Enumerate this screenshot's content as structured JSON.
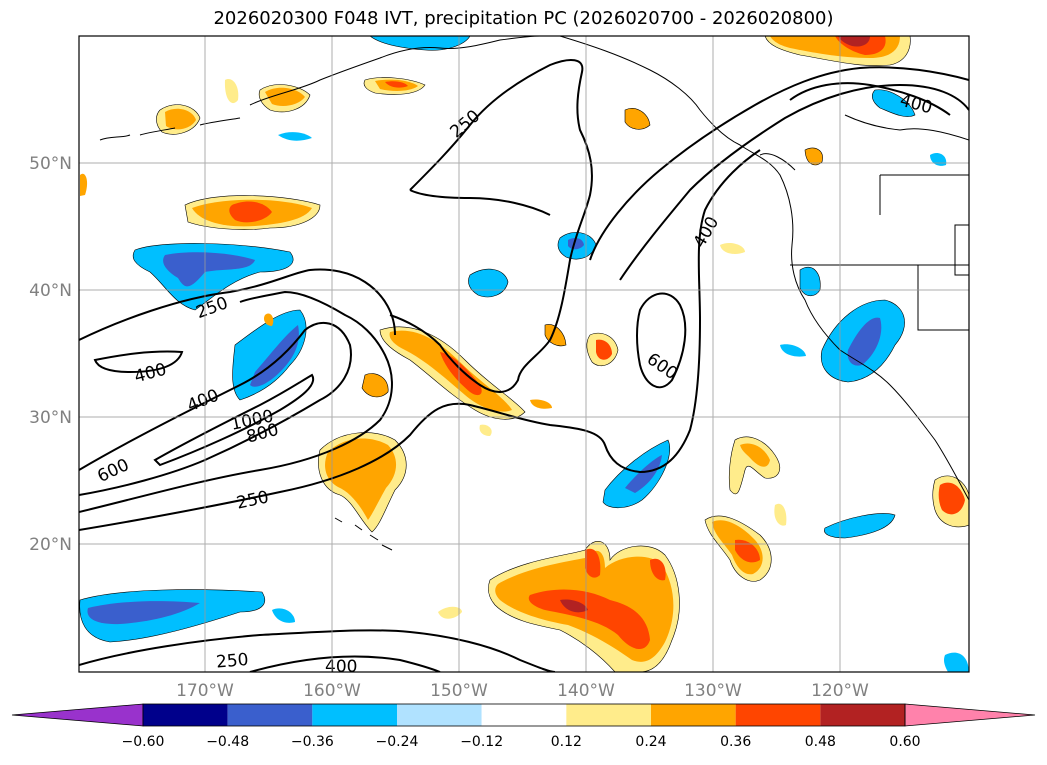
{
  "title": "2026020300 F048 IVT, precipitation PC (2026020700 - 2026020800)",
  "map": {
    "lat_labels": [
      "50°N",
      "40°N",
      "30°N",
      "20°N"
    ],
    "lon_labels": [
      "170°W",
      "160°W",
      "150°W",
      "140°W",
      "130°W",
      "120°W"
    ],
    "ivt_contour_levels": [
      "250",
      "400",
      "600",
      "800",
      "1000"
    ]
  },
  "colorbar": {
    "tick_labels": [
      "−0.60",
      "−0.48",
      "−0.36",
      "−0.24",
      "−0.12",
      "0.12",
      "0.24",
      "0.36",
      "0.48",
      "0.60"
    ],
    "colors": [
      "#9932CC",
      "#00008B",
      "#3A5FCD",
      "#00BFFF",
      "#B0E2FF",
      "#FFFFFF",
      "#FFEC8B",
      "#FFA500",
      "#FF4500",
      "#B22222",
      "#FF82AB"
    ],
    "extend": "both"
  }
}
